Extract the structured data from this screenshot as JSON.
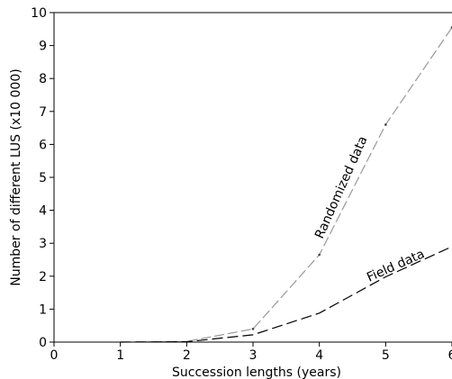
{
  "chart_data": {
    "type": "line",
    "xlabel": "Succession lengths (years)",
    "ylabel": "Number of different LUS (x10 000)",
    "xlim": [
      0,
      6
    ],
    "ylim": [
      0,
      10
    ],
    "x_ticks": [
      "0",
      "1",
      "2",
      "3",
      "4",
      "5",
      "6"
    ],
    "y_ticks": [
      "0",
      "1",
      "2",
      "3",
      "4",
      "5",
      "6",
      "7",
      "8",
      "9",
      "10"
    ],
    "grid": false,
    "series": [
      {
        "name": "Randomized data",
        "color": "#999999",
        "dash": "long-dash",
        "markers": "small-dots",
        "x": [
          1,
          2,
          3,
          4,
          5,
          6
        ],
        "y": [
          0.0,
          0.02,
          0.4,
          2.65,
          6.6,
          9.55
        ]
      },
      {
        "name": "Field data",
        "color": "#000000",
        "dash": "long-dash",
        "markers": "none",
        "x": [
          1,
          2,
          3,
          4,
          5,
          6
        ],
        "y": [
          0.0,
          0.01,
          0.22,
          0.88,
          1.98,
          2.9
        ]
      }
    ]
  }
}
